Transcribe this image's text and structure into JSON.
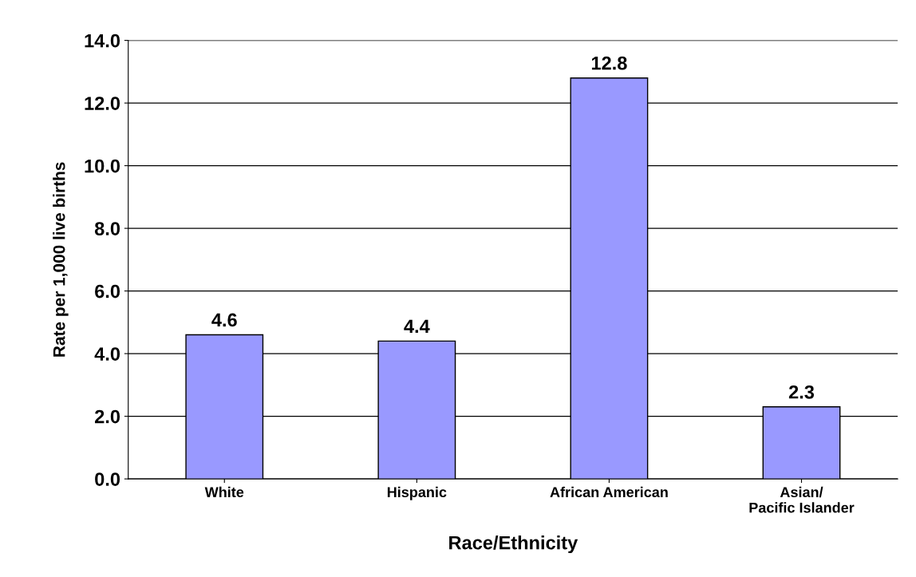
{
  "chart_data": {
    "type": "bar",
    "xlabel": "Race/Ethnicity",
    "ylabel": "Rate per 1,000 live births",
    "categories": [
      "White",
      "Hispanic",
      "African American",
      "Asian/\nPacific Islander"
    ],
    "values": [
      4.6,
      4.4,
      12.8,
      2.3
    ],
    "color": "#9999ff",
    "ylim": [
      0,
      14
    ],
    "yticks": [
      {
        "value": 0,
        "label": "0.0"
      },
      {
        "value": 2,
        "label": "2.0"
      },
      {
        "value": 4,
        "label": "4.0"
      },
      {
        "value": 6,
        "label": "6.0"
      },
      {
        "value": 8,
        "label": "8.0"
      },
      {
        "value": 10,
        "label": "10.0"
      },
      {
        "value": 12,
        "label": "12.0"
      },
      {
        "value": 14,
        "label": "14.0"
      }
    ],
    "grid": "y",
    "data_labels": true
  }
}
